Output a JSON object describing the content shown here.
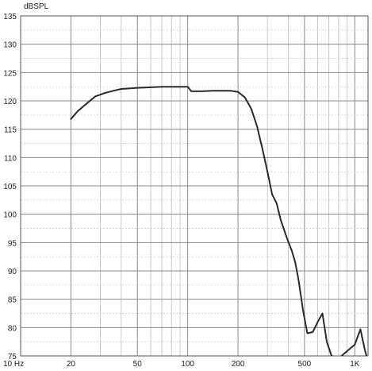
{
  "chart_data": {
    "type": "line",
    "title": "",
    "ylabel": "dBSPL",
    "xlabel": "",
    "x_scale": "log",
    "xlim": [
      10,
      1200
    ],
    "ylim": [
      75,
      135
    ],
    "grid": true,
    "x_tick_labels": [
      {
        "x": 10,
        "label": "10 Hz"
      },
      {
        "x": 20,
        "label": "20"
      },
      {
        "x": 50,
        "label": "50"
      },
      {
        "x": 100,
        "label": "100"
      },
      {
        "x": 200,
        "label": "200"
      },
      {
        "x": 500,
        "label": "500"
      },
      {
        "x": 1000,
        "label": "1K"
      }
    ],
    "y_ticks": [
      135,
      130,
      125,
      120,
      115,
      110,
      105,
      100,
      95,
      90,
      85,
      80,
      75
    ],
    "series": [
      {
        "color": "#2a2a2a",
        "points": [
          [
            20,
            116.8
          ],
          [
            22,
            118.2
          ],
          [
            25,
            119.6
          ],
          [
            28,
            120.8
          ],
          [
            32,
            121.4
          ],
          [
            36,
            121.8
          ],
          [
            40,
            122.1
          ],
          [
            50,
            122.3
          ],
          [
            60,
            122.4
          ],
          [
            70,
            122.5
          ],
          [
            80,
            122.5
          ],
          [
            90,
            122.5
          ],
          [
            100,
            122.5
          ],
          [
            105,
            121.7
          ],
          [
            120,
            121.7
          ],
          [
            140,
            121.8
          ],
          [
            160,
            121.8
          ],
          [
            180,
            121.8
          ],
          [
            200,
            121.6
          ],
          [
            220,
            120.6
          ],
          [
            240,
            118.6
          ],
          [
            260,
            115.5
          ],
          [
            280,
            111.5
          ],
          [
            300,
            107.5
          ],
          [
            320,
            103.5
          ],
          [
            340,
            102.0
          ],
          [
            360,
            99.0
          ],
          [
            390,
            96.0
          ],
          [
            420,
            93.5
          ],
          [
            440,
            91.5
          ],
          [
            460,
            88.5
          ],
          [
            490,
            83.0
          ],
          [
            520,
            79.0
          ],
          [
            560,
            79.2
          ],
          [
            600,
            81.0
          ],
          [
            640,
            82.5
          ],
          [
            680,
            77.5
          ],
          [
            720,
            75.3
          ],
          [
            760,
            74.0
          ],
          [
            1000,
            77.0
          ],
          [
            1080,
            79.7
          ],
          [
            1150,
            76.0
          ],
          [
            1200,
            74.0
          ]
        ]
      }
    ]
  }
}
